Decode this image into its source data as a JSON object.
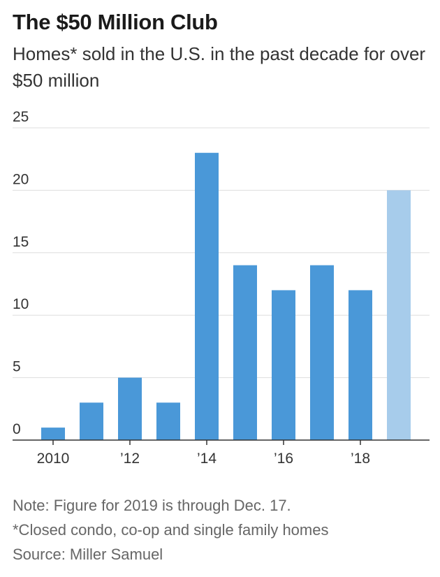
{
  "header": {
    "title": "The $50 Million Club",
    "subtitle": "Homes* sold in the U.S. in the past decade for over $50 million"
  },
  "chart_data": {
    "type": "bar",
    "title": "The $50 Million Club",
    "subtitle": "Homes* sold in the U.S. in the past decade for over $50 million",
    "categories": [
      "2010",
      "2011",
      "2012",
      "2013",
      "2014",
      "2015",
      "2016",
      "2017",
      "2018",
      "2019"
    ],
    "x_tick_labels": [
      "2010",
      "",
      "’12",
      "",
      "’14",
      "",
      "’16",
      "",
      "’18",
      ""
    ],
    "values": [
      1,
      3,
      5,
      3,
      23,
      14,
      12,
      14,
      12,
      20
    ],
    "highlight_index": 9,
    "ylim": [
      0,
      25
    ],
    "yticks": [
      0,
      5,
      10,
      15,
      20,
      25
    ],
    "xlabel": "",
    "ylabel": "",
    "grid": true,
    "colors": {
      "bar": "#4a98d8",
      "bar_partial": "#a7cceb",
      "grid": "#dddddd",
      "axis": "#333333",
      "tick_text": "#333333"
    }
  },
  "footnotes": {
    "note": "Note: Figure for 2019 is through Dec. 17.",
    "definition": "*Closed condo, co-op and single family homes",
    "source": "Source: Miller Samuel"
  }
}
